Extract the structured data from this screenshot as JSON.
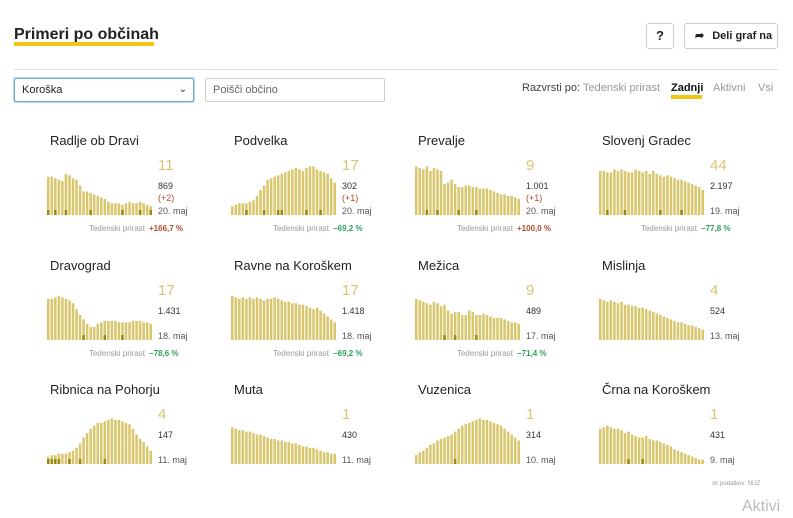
{
  "header": {
    "title": "Primeri po občinah",
    "help_label": "?",
    "share_label": "Deli graf na",
    "share_icon": "share-arrow-icon"
  },
  "filters": {
    "region_selected": "Koroška",
    "search_placeholder": "Poišči občino"
  },
  "sort": {
    "label": "Razvrsti po:",
    "options": [
      "Tedenski prirast",
      "Zadnji",
      "Aktivni",
      "Vsi"
    ],
    "active": "Zadnji"
  },
  "colors": {
    "bar": "#d8c76e",
    "bar_dark": "#9a8a10",
    "accent": "#f0c514",
    "trend_up": "#b24a2c",
    "trend_down": "#2e9e5b"
  },
  "chart_data": [
    {
      "type": "bar",
      "title": "Radlje ob Dravi",
      "latest": "11",
      "total": "869",
      "delta": "(+2)",
      "date": "20. maj",
      "trend_label": "Tedenski prirast",
      "trend": "+166,7 %",
      "trend_dir": "up",
      "values": [
        26,
        26,
        25,
        24,
        23,
        28,
        27,
        25,
        24,
        20,
        16,
        16,
        15,
        14,
        13,
        12,
        11,
        9,
        8,
        8,
        8,
        7,
        8,
        9,
        8,
        8,
        9,
        8,
        7,
        6
      ],
      "highlight": [
        1,
        0,
        1,
        0,
        0,
        1,
        0,
        0,
        0,
        0,
        0,
        0,
        1,
        0,
        0,
        0,
        0,
        0,
        0,
        0,
        0,
        1,
        0,
        0,
        0,
        0,
        1,
        0,
        0,
        1
      ]
    },
    {
      "type": "bar",
      "title": "Podvelka",
      "latest": "17",
      "total": "302",
      "delta": "(+1)",
      "date": "20. maj",
      "trend_label": "Tedenski prirast",
      "trend": "−69,2 %",
      "trend_dir": "down",
      "values": [
        6,
        7,
        8,
        8,
        8,
        9,
        10,
        13,
        17,
        20,
        24,
        25,
        26,
        27,
        28,
        29,
        30,
        31,
        32,
        31,
        30,
        32,
        33,
        33,
        31,
        30,
        29,
        28,
        25,
        22
      ],
      "highlight": [
        0,
        0,
        0,
        0,
        1,
        0,
        0,
        0,
        0,
        1,
        0,
        0,
        0,
        1,
        1,
        0,
        0,
        0,
        0,
        0,
        0,
        1,
        0,
        0,
        0,
        1,
        0,
        0,
        0,
        0
      ]
    },
    {
      "type": "bar",
      "title": "Prevalje",
      "latest": "9",
      "total": "1.001",
      "delta": "(+1)",
      "date": "20. maj",
      "trend_label": "Tedenski prirast",
      "trend": "+100,0 %",
      "trend_dir": "up",
      "values": [
        33,
        32,
        31,
        33,
        30,
        32,
        31,
        30,
        21,
        22,
        24,
        21,
        19,
        19,
        20,
        20,
        19,
        19,
        18,
        18,
        18,
        17,
        16,
        15,
        14,
        14,
        13,
        13,
        12,
        11
      ],
      "highlight": [
        0,
        0,
        0,
        1,
        0,
        0,
        1,
        0,
        0,
        0,
        0,
        0,
        1,
        0,
        0,
        0,
        0,
        1,
        0,
        0,
        0,
        0,
        0,
        0,
        0,
        0,
        0,
        0,
        0,
        0
      ]
    },
    {
      "type": "bar",
      "title": "Slovenj Gradec",
      "latest": "44",
      "total": "2.197",
      "delta": "",
      "date": "19. maj",
      "trend_label": "Tedenski prirast",
      "trend": "−77,8 %",
      "trend_dir": "down",
      "values": [
        30,
        30,
        29,
        29,
        31,
        30,
        31,
        30,
        29,
        29,
        31,
        30,
        29,
        30,
        28,
        30,
        28,
        27,
        26,
        27,
        26,
        25,
        24,
        24,
        23,
        22,
        21,
        20,
        19,
        17
      ],
      "highlight": [
        0,
        0,
        1,
        0,
        0,
        0,
        0,
        1,
        0,
        0,
        0,
        0,
        0,
        0,
        0,
        0,
        0,
        1,
        0,
        0,
        0,
        0,
        0,
        1,
        0,
        0,
        0,
        0,
        0,
        0
      ]
    },
    {
      "type": "bar",
      "title": "Dravograd",
      "latest": "17",
      "total": "1.431",
      "delta": "",
      "date": "18. maj",
      "trend_label": "Tedenski prirast",
      "trend": "−78,6 %",
      "trend_dir": "down",
      "values": [
        28,
        28,
        29,
        30,
        29,
        28,
        27,
        25,
        21,
        17,
        14,
        11,
        9,
        9,
        11,
        12,
        13,
        13,
        13,
        13,
        12,
        12,
        12,
        12,
        13,
        13,
        13,
        12,
        12,
        11
      ],
      "highlight": [
        0,
        0,
        0,
        0,
        0,
        0,
        0,
        0,
        0,
        0,
        1,
        0,
        0,
        0,
        0,
        0,
        1,
        0,
        0,
        0,
        0,
        1,
        0,
        0,
        0,
        0,
        0,
        0,
        0,
        0
      ]
    },
    {
      "type": "bar",
      "title": "Ravne na Koroškem",
      "latest": "17",
      "total": "1.418",
      "delta": "",
      "date": "18. maj",
      "trend_label": "Tedenski prirast",
      "trend": "−69,2 %",
      "trend_dir": "down",
      "values": [
        30,
        29,
        28,
        29,
        28,
        29,
        28,
        29,
        28,
        27,
        28,
        28,
        29,
        28,
        27,
        26,
        26,
        25,
        25,
        24,
        24,
        23,
        22,
        21,
        22,
        20,
        18,
        16,
        14,
        12
      ],
      "highlight": [
        0,
        0,
        0,
        0,
        0,
        0,
        0,
        0,
        0,
        0,
        0,
        0,
        0,
        0,
        0,
        0,
        0,
        0,
        0,
        0,
        0,
        0,
        0,
        0,
        0,
        0,
        0,
        0,
        0,
        0
      ]
    },
    {
      "type": "bar",
      "title": "Mežica",
      "latest": "9",
      "total": "489",
      "delta": "",
      "date": "17. maj",
      "trend_label": "Tedenski prirast",
      "trend": "−71,4 %",
      "trend_dir": "down",
      "values": [
        28,
        27,
        26,
        25,
        24,
        26,
        25,
        23,
        24,
        20,
        18,
        19,
        19,
        17,
        17,
        20,
        19,
        17,
        17,
        18,
        17,
        16,
        15,
        15,
        15,
        14,
        13,
        12,
        12,
        11
      ],
      "highlight": [
        0,
        0,
        0,
        0,
        0,
        0,
        0,
        0,
        1,
        0,
        0,
        1,
        0,
        0,
        0,
        0,
        0,
        1,
        0,
        0,
        0,
        0,
        0,
        0,
        0,
        0,
        0,
        0,
        0,
        0
      ]
    },
    {
      "type": "bar",
      "title": "Mislinja",
      "latest": "4",
      "total": "524",
      "delta": "",
      "date": "13. maj",
      "trend_label": "",
      "trend": "",
      "trend_dir": "",
      "values": [
        28,
        27,
        26,
        27,
        26,
        25,
        26,
        24,
        24,
        23,
        23,
        22,
        22,
        21,
        20,
        19,
        18,
        17,
        16,
        15,
        14,
        13,
        12,
        12,
        11,
        10,
        10,
        9,
        8,
        7
      ],
      "highlight": [
        0,
        0,
        0,
        0,
        0,
        0,
        0,
        0,
        0,
        0,
        0,
        0,
        0,
        0,
        0,
        0,
        0,
        0,
        0,
        0,
        0,
        0,
        0,
        0,
        0,
        0,
        0,
        0,
        0,
        0
      ]
    },
    {
      "type": "bar",
      "title": "Ribnica na Pohorju",
      "latest": "4",
      "total": "147",
      "delta": "",
      "date": "11. maj",
      "trend_label": "",
      "trend": "",
      "trend_dir": "",
      "values": [
        5,
        6,
        6,
        7,
        7,
        7,
        8,
        9,
        11,
        14,
        18,
        21,
        24,
        26,
        28,
        28,
        29,
        30,
        31,
        30,
        30,
        29,
        28,
        27,
        24,
        20,
        17,
        15,
        12,
        9
      ],
      "highlight": [
        1,
        1,
        1,
        1,
        0,
        0,
        1,
        0,
        0,
        1,
        0,
        0,
        0,
        0,
        0,
        0,
        1,
        0,
        0,
        0,
        0,
        0,
        0,
        0,
        0,
        0,
        0,
        0,
        0,
        0
      ]
    },
    {
      "type": "bar",
      "title": "Muta",
      "latest": "1",
      "total": "430",
      "delta": "",
      "date": "11. maj",
      "trend_label": "",
      "trend": "",
      "trend_dir": "",
      "values": [
        25,
        24,
        23,
        23,
        22,
        22,
        21,
        20,
        20,
        19,
        18,
        17,
        17,
        16,
        16,
        15,
        15,
        14,
        14,
        13,
        12,
        12,
        11,
        11,
        10,
        9,
        8,
        8,
        7,
        7
      ],
      "highlight": [
        0,
        0,
        0,
        0,
        0,
        0,
        0,
        0,
        0,
        0,
        0,
        0,
        0,
        0,
        0,
        0,
        0,
        0,
        0,
        0,
        0,
        0,
        0,
        0,
        0,
        0,
        0,
        0,
        0,
        0
      ]
    },
    {
      "type": "bar",
      "title": "Vuzenica",
      "latest": "1",
      "total": "314",
      "delta": "",
      "date": "10. maj",
      "trend_label": "",
      "trend": "",
      "trend_dir": "",
      "values": [
        6,
        8,
        9,
        11,
        13,
        14,
        16,
        17,
        18,
        19,
        20,
        22,
        24,
        26,
        27,
        28,
        29,
        30,
        31,
        30,
        30,
        29,
        28,
        27,
        26,
        24,
        22,
        20,
        18,
        16
      ],
      "highlight": [
        0,
        0,
        0,
        0,
        0,
        0,
        0,
        0,
        0,
        0,
        0,
        1,
        0,
        0,
        0,
        0,
        0,
        0,
        0,
        0,
        0,
        0,
        0,
        0,
        0,
        0,
        0,
        0,
        0,
        0
      ]
    },
    {
      "type": "bar",
      "title": "Črna na Koroškem",
      "latest": "1",
      "total": "431",
      "delta": "",
      "date": "9. maj",
      "trend_label": "",
      "trend": "",
      "trend_dir": "",
      "values": [
        24,
        25,
        26,
        25,
        24,
        24,
        23,
        21,
        22,
        20,
        19,
        18,
        18,
        19,
        17,
        16,
        16,
        15,
        14,
        13,
        12,
        10,
        9,
        8,
        7,
        6,
        5,
        4,
        3,
        3
      ],
      "highlight": [
        0,
        0,
        0,
        0,
        0,
        0,
        0,
        0,
        1,
        0,
        0,
        0,
        1,
        0,
        0,
        0,
        0,
        0,
        0,
        0,
        0,
        0,
        0,
        0,
        0,
        0,
        0,
        0,
        0,
        0
      ]
    }
  ],
  "footer": {
    "source": "vir podatkov: NIJZ",
    "watermark": "Aktivi"
  }
}
